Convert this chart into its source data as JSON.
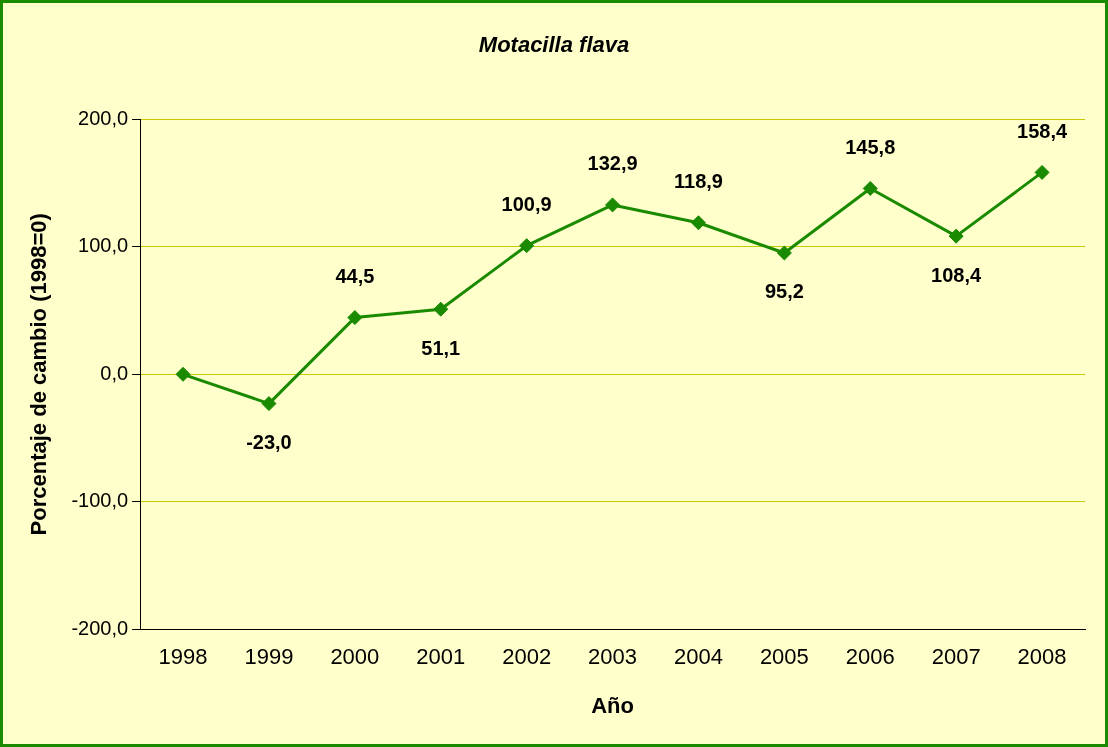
{
  "chart_data": {
    "type": "line",
    "title": "Motacilla flava",
    "xlabel": "Año",
    "ylabel": "Porcentaje de cambio (1998=0)",
    "categories": [
      "1998",
      "1999",
      "2000",
      "2001",
      "2002",
      "2003",
      "2004",
      "2005",
      "2006",
      "2007",
      "2008"
    ],
    "series": [
      {
        "color": "#1a8a00",
        "values": [
          0,
          -23.0,
          44.5,
          51.1,
          100.9,
          132.9,
          118.9,
          95.2,
          145.8,
          108.4,
          158.4
        ],
        "value_labels": [
          null,
          "-23,0",
          "44,5",
          "51,1",
          "100,9",
          "132,9",
          "118,9",
          "95,2",
          "145,8",
          "108,4",
          "158,4"
        ]
      }
    ],
    "ylim": [
      -200,
      200
    ],
    "yticks": [
      {
        "value": -200,
        "label": "-200,0"
      },
      {
        "value": -100,
        "label": "-100,0"
      },
      {
        "value": 0,
        "label": "0,0"
      },
      {
        "value": 100,
        "label": "100,0"
      },
      {
        "value": 200,
        "label": "200,0"
      }
    ],
    "grid": "y",
    "legend": false,
    "marker": "diamond",
    "line_style": "solid"
  }
}
